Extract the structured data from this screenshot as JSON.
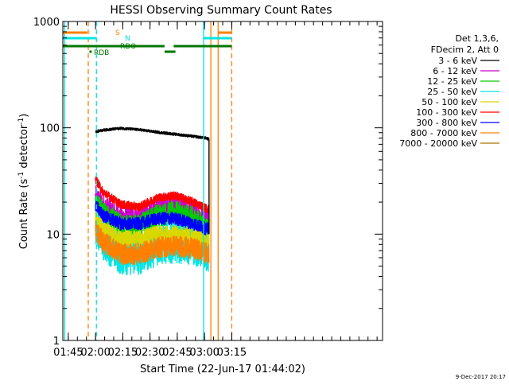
{
  "chart_data": {
    "type": "line",
    "title": "HESSI Observing Summary Count Rates",
    "xlabel": "Start Time (22-Jun-17 01:44:02)",
    "ylabel_main": "Count Rate (s",
    "ylabel_sup1": "-1",
    "ylabel_mid": " detector",
    "ylabel_sup2": "-1",
    "ylabel_end": ")",
    "y_scale": "log",
    "ylim": [
      1,
      1000
    ],
    "xlim_min": [
      -2,
      174
    ],
    "x_tick_minutes": [
      1,
      16,
      31,
      46,
      61,
      76,
      91
    ],
    "x_tick_labels": [
      "01:45",
      "02:00",
      "02:15",
      "02:30",
      "02:45",
      "03:00",
      "03:15"
    ],
    "y_tick_values": [
      1,
      10,
      100,
      1000
    ],
    "y_tick_labels": [
      "1",
      "10",
      "100",
      "1000"
    ],
    "legend_title": "Det 1,3,6,",
    "legend_subtitle": "FDecim 2, Att 0",
    "legend_position": "right",
    "series": [
      {
        "name": "3 - 6 keV",
        "color": "#000000",
        "x": [
          16,
          20,
          30,
          40,
          50,
          60,
          70,
          77,
          78.5
        ],
        "y": [
          92,
          95,
          99,
          96,
          91,
          87,
          83,
          80,
          78
        ]
      },
      {
        "name": "6 - 12 keV",
        "color": "#cc00cc",
        "x": [
          16,
          20,
          30,
          40,
          50,
          60,
          70,
          78.5
        ],
        "y": [
          22,
          18,
          14,
          14,
          18,
          19,
          16,
          13
        ]
      },
      {
        "name": "12 - 25 keV",
        "color": "#00cc00",
        "x": [
          16,
          20,
          30,
          40,
          50,
          60,
          70,
          78.5
        ],
        "y": [
          20,
          16,
          12,
          12,
          15,
          16,
          14,
          11
        ]
      },
      {
        "name": "25 - 50 keV",
        "color": "#00e5e5",
        "x": [
          16,
          20,
          30,
          40,
          50,
          60,
          70,
          78.5
        ],
        "y": [
          13,
          9,
          6.5,
          6.5,
          8,
          8.5,
          8,
          7
        ]
      },
      {
        "name": "50 - 100 keV",
        "color": "#d8d800",
        "x": [
          16,
          20,
          30,
          40,
          50,
          60,
          70,
          78.5
        ],
        "y": [
          14,
          11,
          9,
          9,
          10,
          10,
          9.5,
          8.5
        ]
      },
      {
        "name": "100 - 300 keV",
        "color": "#ff0000",
        "x": [
          16,
          20,
          30,
          40,
          50,
          60,
          70,
          78.5
        ],
        "y": [
          33,
          25,
          19,
          18,
          22,
          23,
          20,
          17
        ]
      },
      {
        "name": "300 - 800 keV",
        "color": "#0000ff",
        "x": [
          16,
          20,
          30,
          40,
          50,
          60,
          70,
          78.5
        ],
        "y": [
          19,
          15,
          12.5,
          12.5,
          14,
          14,
          12.5,
          11
        ]
      },
      {
        "name": "800 - 7000 keV",
        "color": "#ff8000",
        "x": [
          16,
          20,
          30,
          40,
          50,
          60,
          70,
          78.5
        ],
        "y": [
          11,
          8.5,
          6.5,
          6.5,
          7.5,
          7.8,
          7.3,
          6.5
        ]
      },
      {
        "name": "7000 - 20000 keV",
        "color": "#b07000",
        "x": [],
        "y": []
      }
    ],
    "annotations": {
      "labels": [
        {
          "text": "S",
          "color": "#ff8000"
        },
        {
          "text": "N",
          "color": "#00e5e5"
        },
        {
          "text": "RDO",
          "color": "#007700"
        },
        {
          "text": "RDB",
          "color": "#007700"
        }
      ],
      "bars_minutes": [
        {
          "label": "S",
          "color": "#ff8000",
          "segments": [
            [
              -2,
              11.5
            ],
            [
              83.5,
              91
            ]
          ]
        },
        {
          "label": "N",
          "color": "#00e5e5",
          "segments": [
            [
              -2,
              16.5
            ],
            [
              75.5,
              91
            ]
          ]
        },
        {
          "label": "RDO",
          "color": "#007700",
          "segments": [
            [
              -2,
              54
            ],
            [
              59,
              91
            ]
          ],
          "dip": [
            54,
            60
          ]
        },
        {
          "label": "RDB",
          "color": "#007700",
          "segments": [
            [
              13.3,
              13.3
            ]
          ]
        }
      ],
      "vlines_minutes": [
        {
          "x": -1.0,
          "color": "#00e5e5",
          "style": "solid"
        },
        {
          "x": 12.0,
          "color": "#ff8000",
          "style": "dashed"
        },
        {
          "x": 16.5,
          "color": "#00e5e5",
          "style": "dashed"
        },
        {
          "x": 75.5,
          "color": "#00e5e5",
          "style": "solid"
        },
        {
          "x": 79.5,
          "color": "#ff8000",
          "style": "solid"
        },
        {
          "x": 83.5,
          "color": "#ff8000",
          "style": "solid"
        },
        {
          "x": 91.0,
          "color": "#ff8000",
          "style": "dashed"
        }
      ]
    },
    "timestamp": "9-Dec-2017 20:17"
  }
}
